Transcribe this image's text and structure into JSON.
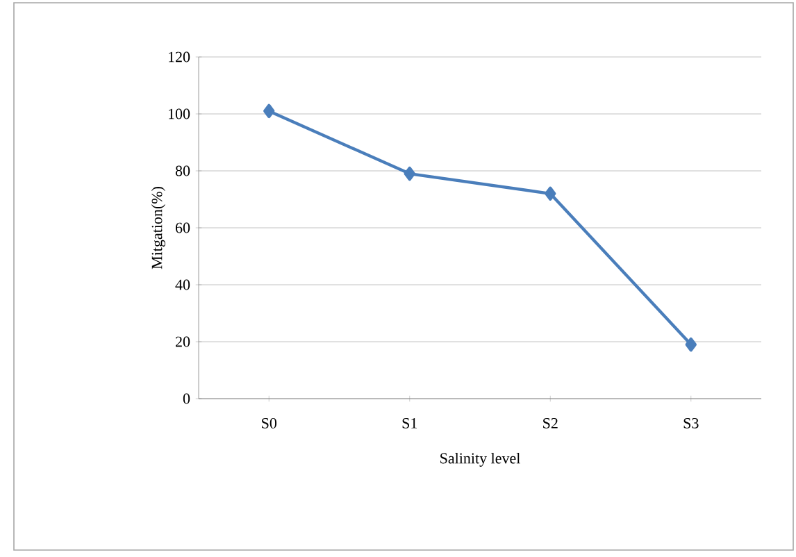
{
  "chart_data": {
    "type": "line",
    "xlabel": "Salinity level",
    "ylabel": "Mitgation(%)",
    "categories": [
      "S0",
      "S1",
      "S2",
      "S3"
    ],
    "series": [
      {
        "color": "#4a7ebb",
        "values": [
          101,
          79,
          72,
          19
        ]
      }
    ],
    "ylim": [
      0,
      120
    ],
    "yticks": [
      0,
      20,
      40,
      60,
      80,
      100,
      120
    ],
    "grid": "y",
    "marker": "diamond",
    "line_style": "solid"
  }
}
